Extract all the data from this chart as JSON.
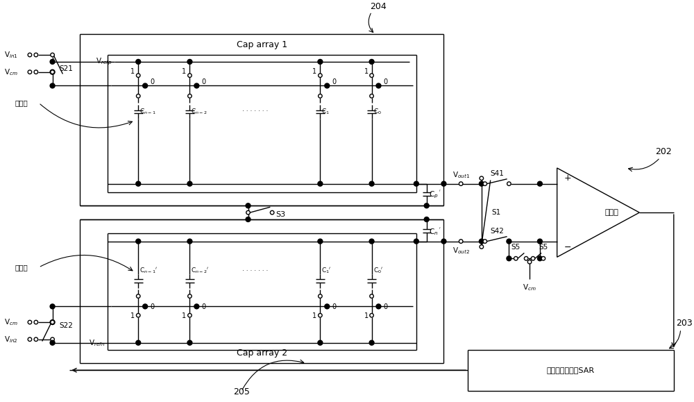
{
  "bg_color": "#ffffff",
  "figsize": [
    10.0,
    5.79
  ],
  "dpi": 100,
  "labels": {
    "Vin1": "V$_{in1}$",
    "Vin2": "V$_{in2}$",
    "Vcm": "V$_{cm}$",
    "Vrefp": "V$_{refp}$",
    "Vrefn": "V$_{refn}$",
    "S21": "S21",
    "S22": "S22",
    "S3": "S3",
    "S1": "S1",
    "S41": "S41",
    "S42": "S42",
    "S5": "S5",
    "Vout1": "V$_{out1}$",
    "Vout2": "V$_{out2}$",
    "Cp_p": "C$_p$$^{\\ '}$",
    "Cp_n": "C$_n$$^{\\ '}$",
    "cap_array1": "Cap array 1",
    "cap_array2": "Cap array 2",
    "comparator": "比较器",
    "sar": "逐次逆近寄存器SAR",
    "n204": "204",
    "n205": "205",
    "n202": "202",
    "n203": "203",
    "xia_jiban": "下极板",
    "Cn1": "C$_{n-1}$",
    "Cn2": "C$_{n-2}$",
    "C1": "C$_1$",
    "C0": "C$_0$",
    "Cn1p": "C$_{n-1}$$'$",
    "Cn2p": "C$_{n-2}$$'$",
    "C1p": "C$_1$$'$",
    "C0p": "C$_0$$'$",
    "dots": "· · · · · · ·"
  }
}
